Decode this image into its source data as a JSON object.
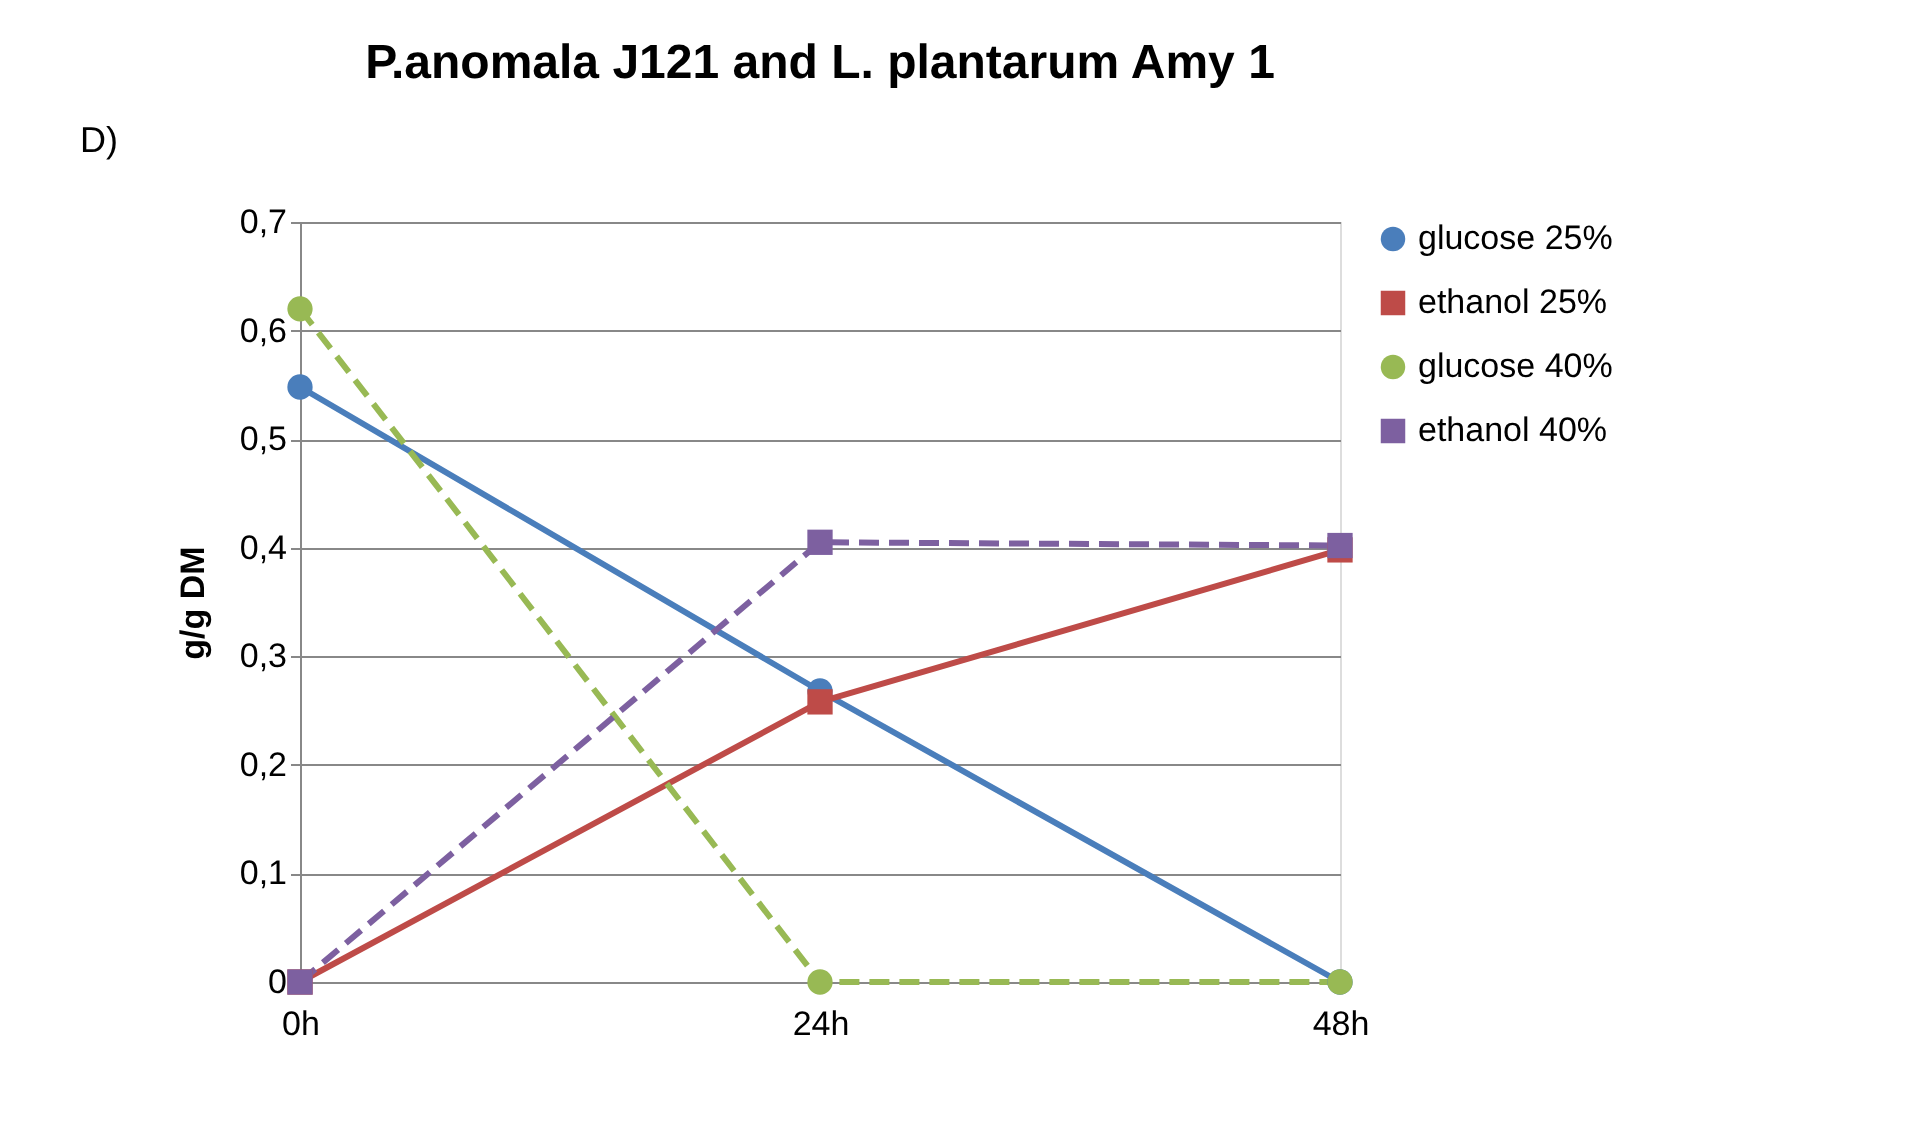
{
  "chart_data": {
    "type": "line",
    "title": "P.anomala J121 and L. plantarum Amy 1",
    "ylabel": "g/g DM",
    "annotations": [
      "D)"
    ],
    "categories": [
      "0h",
      "24h",
      "48h"
    ],
    "ylim": [
      0,
      0.7
    ],
    "yticks": [
      {
        "value": 0,
        "label": "0"
      },
      {
        "value": 0.1,
        "label": "0,1"
      },
      {
        "value": 0.2,
        "label": "0,2"
      },
      {
        "value": 0.3,
        "label": "0,3"
      },
      {
        "value": 0.4,
        "label": "0,4"
      },
      {
        "value": 0.5,
        "label": "0,5"
      },
      {
        "value": 0.6,
        "label": "0,6"
      },
      {
        "value": 0.7,
        "label": "0,7"
      }
    ],
    "grid": "y",
    "legend": "right",
    "series": [
      {
        "name": "glucose 25%",
        "color": "#4a7ebb",
        "marker": "circle",
        "line_style": "solid",
        "values": [
          0.548,
          0.268,
          0
        ]
      },
      {
        "name": "ethanol 25%",
        "color": "#be4b48",
        "marker": "square",
        "line_style": "solid",
        "values": [
          0,
          0.258,
          0.398
        ]
      },
      {
        "name": "glucose 40%",
        "color": "#98b954",
        "marker": "circle",
        "line_style": "dashed",
        "values": [
          0.62,
          0,
          0
        ]
      },
      {
        "name": "ethanol 40%",
        "color": "#7d60a0",
        "marker": "square",
        "line_style": "dashed",
        "values": [
          0,
          0.405,
          0.402
        ]
      }
    ]
  }
}
